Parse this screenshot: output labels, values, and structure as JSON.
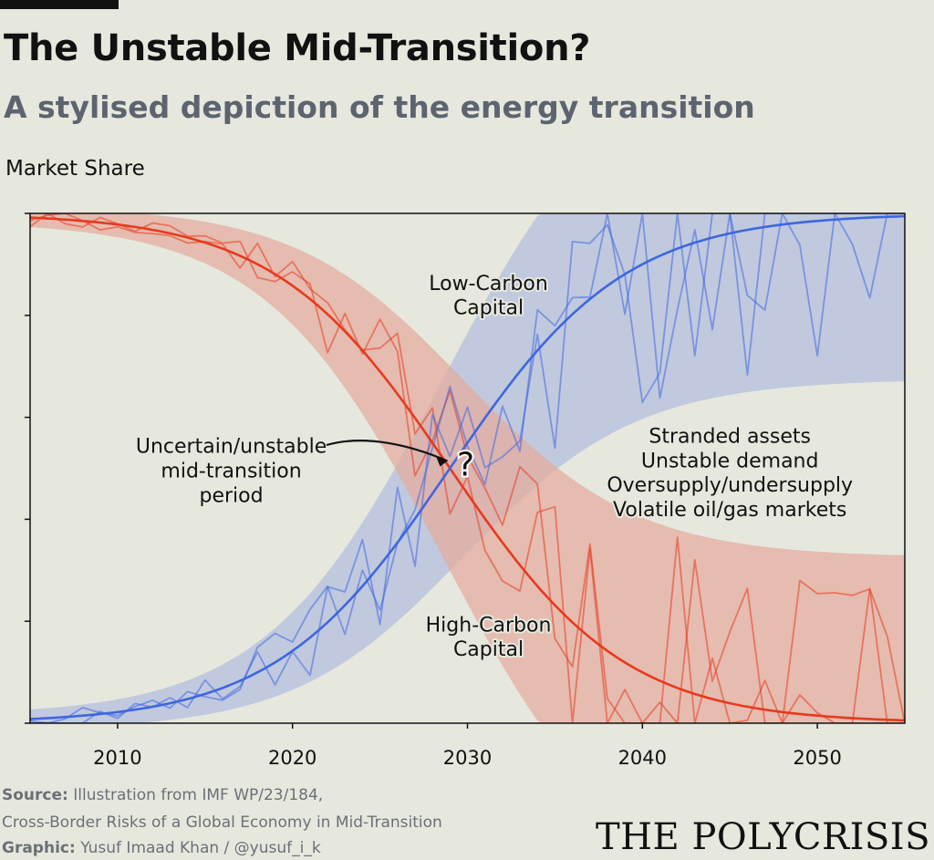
{
  "header": {
    "title": "The Unstable Mid-Transition?",
    "subtitle_prefix": "A ",
    "subtitle_bold": "stylised",
    "subtitle_suffix": " depiction of the energy transition"
  },
  "footer": {
    "source_label": "Source:",
    "source_text": " Illustration from IMF WP/23/184,",
    "source_text2": "Cross-Border Risks of a Global Economy in Mid-Transition",
    "graphic_label": "Graphic:",
    "graphic_text": " Yusuf Imaad Khan / @yusuf_i_k",
    "brand": "THE POLYCRISIS"
  },
  "chart_data": {
    "type": "line",
    "ylabel": "Market Share",
    "xlim": [
      2005,
      2055
    ],
    "ylim": [
      0,
      1
    ],
    "x_ticks": [
      2010,
      2020,
      2030,
      2040,
      2050
    ],
    "y_tick_count": 6,
    "y_tick_labels_shown": false,
    "grid": false,
    "curve": {
      "type": "logistic",
      "midpoint": 2029,
      "steepness": 0.2
    },
    "colors": {
      "high_carbon": "#e8391e",
      "high_carbon_band": "#e5ab9c",
      "low_carbon": "#3e66e0",
      "low_carbon_band": "#b9c3de"
    },
    "series": [
      {
        "name": "High-Carbon Capital",
        "label_lines": [
          "High-Carbon",
          "Capital"
        ],
        "label_at": [
          2031.2,
          0.18
        ]
      },
      {
        "name": "Low-Carbon Capital",
        "label_lines": [
          "Low-Carbon",
          "Capital"
        ],
        "label_at": [
          2031.2,
          0.85
        ]
      }
    ],
    "annotations": [
      {
        "id": "mid-transition",
        "lines": [
          "Uncertain/unstable",
          "mid-transition",
          "period"
        ],
        "at": [
          2016.5,
          0.53
        ]
      },
      {
        "id": "question-mark",
        "text": "?",
        "at": [
          2030.0,
          0.5
        ]
      },
      {
        "id": "risks",
        "lines": [
          "Stranded assets",
          "Unstable demand",
          "Oversupply/undersupply",
          "Volatile oil/gas markets"
        ],
        "at": [
          2045.0,
          0.55
        ]
      }
    ]
  }
}
